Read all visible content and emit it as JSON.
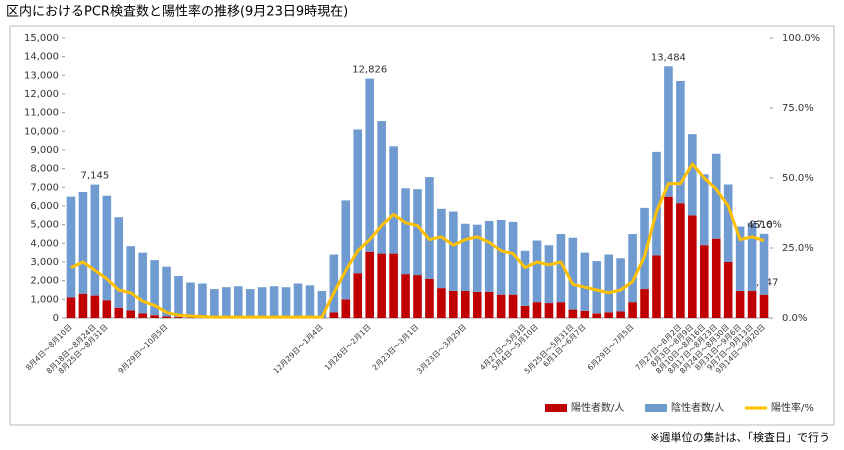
{
  "chart_data": {
    "type": "bar-line",
    "title": "区内におけるPCR検査数と陽性率の推移(9月23日9時現在)",
    "note": "※週単位の集計は、「検査日」で行う",
    "categories": [
      "8月4日～8月10日",
      null,
      "8月18日～8月24日",
      "8月25日～8月31日",
      null,
      null,
      null,
      null,
      "9月29日～10月5日",
      null,
      null,
      null,
      null,
      null,
      null,
      null,
      null,
      null,
      null,
      null,
      null,
      "12月29日～1月4日",
      null,
      null,
      null,
      "1月26日～2月1日",
      null,
      null,
      null,
      "2月23日～3月1日",
      null,
      null,
      null,
      "3月23日～3月29日",
      null,
      null,
      null,
      null,
      "4月27日～5月3日",
      "5月4日～5月10日",
      null,
      null,
      "5月25日～5月31日",
      "6月1日～6月7日",
      null,
      null,
      null,
      "6月29日～7月5日",
      null,
      null,
      null,
      "7月27日～8月2日",
      "8月3日～8月9日",
      "8月10日～8月16日",
      "8月17日～8月23日",
      "8月24日～8月30日",
      "8月31日～9月6日",
      "9月7日～9月13日",
      "9月14日～9月20日"
    ],
    "series": [
      {
        "name": "陽性者数/人",
        "kind": "bar",
        "color": "#c00000",
        "values": [
          1100,
          1300,
          1200,
          950,
          550,
          400,
          250,
          150,
          80,
          50,
          20,
          20,
          10,
          10,
          10,
          10,
          10,
          10,
          10,
          10,
          10,
          10,
          300,
          1000,
          2400,
          3550,
          3450,
          3450,
          2350,
          2300,
          2100,
          1600,
          1450,
          1450,
          1400,
          1400,
          1250,
          1250,
          650,
          850,
          800,
          850,
          450,
          380,
          250,
          300,
          350,
          850,
          1550,
          3350,
          6500,
          6150,
          5500,
          3900,
          4250,
          3000,
          1450,
          1450,
          1247
        ],
        "value_labels": [
          null,
          null,
          null,
          null,
          null,
          null,
          null,
          null,
          null,
          null,
          null,
          null,
          null,
          null,
          null,
          null,
          null,
          null,
          null,
          null,
          null,
          null,
          null,
          null,
          null,
          null,
          null,
          null,
          null,
          null,
          null,
          null,
          null,
          null,
          null,
          null,
          null,
          null,
          null,
          null,
          null,
          null,
          null,
          null,
          null,
          null,
          null,
          null,
          null,
          null,
          null,
          null,
          null,
          null,
          null,
          null,
          null,
          null,
          "1,247"
        ]
      },
      {
        "name": "陰性者数/人",
        "kind": "bar",
        "color": "#6f9bd1",
        "values": [
          5400,
          5450,
          5945,
          5600,
          4850,
          3450,
          3250,
          2950,
          2670,
          2200,
          1880,
          1830,
          1540,
          1640,
          1690,
          1540,
          1640,
          1690,
          1640,
          1840,
          1740,
          1440,
          3100,
          5300,
          7700,
          9276,
          7100,
          5750,
          4600,
          4600,
          5450,
          4250,
          4250,
          3600,
          3600,
          3800,
          4000,
          3900,
          2950,
          3300,
          3100,
          3650,
          3850,
          3120,
          2800,
          3100,
          2850,
          3650,
          4350,
          5550,
          6984,
          6550,
          4350,
          3800,
          4550,
          4150,
          3450,
          3650,
          3263
        ]
      },
      {
        "name": "陽性率/%",
        "kind": "line",
        "axis": "y2",
        "color": "#ffc000",
        "values": [
          18,
          20,
          17,
          14,
          10,
          9,
          6,
          4.5,
          2,
          1,
          0.7,
          0.5,
          0.3,
          0.3,
          0.3,
          0.3,
          0.3,
          0.3,
          0.3,
          0.3,
          0.3,
          0.3,
          9,
          17,
          24,
          28,
          33,
          37,
          34,
          33,
          28,
          29,
          26,
          28,
          29,
          27,
          24,
          23,
          18,
          20,
          19,
          20,
          12,
          11,
          10,
          9,
          10,
          13,
          22,
          38,
          48,
          48,
          55,
          50,
          46,
          40,
          28,
          29,
          27.6
        ],
        "value_labels": [
          null,
          null,
          null,
          null,
          null,
          null,
          null,
          null,
          null,
          null,
          null,
          null,
          null,
          null,
          null,
          null,
          null,
          null,
          null,
          null,
          null,
          null,
          null,
          null,
          null,
          null,
          null,
          null,
          null,
          null,
          null,
          null,
          null,
          null,
          null,
          null,
          null,
          null,
          null,
          null,
          null,
          null,
          null,
          null,
          null,
          null,
          null,
          null,
          null,
          null,
          null,
          null,
          null,
          null,
          null,
          null,
          null,
          null,
          "27.6%"
        ]
      }
    ],
    "annotations": [
      {
        "value": 7145,
        "label": "7,145",
        "color": "#92d050"
      },
      {
        "value": 12826,
        "label": "12,826",
        "color": "#92d050"
      },
      {
        "value": 13484,
        "label": "13,484",
        "color": "#92d050"
      },
      {
        "value": 4510,
        "label": "4510",
        "color": "#92d050"
      }
    ],
    "ylim": [
      0,
      15000
    ],
    "yticks": [
      0,
      {
        "value": 1000,
        "label": "1,000"
      },
      {
        "value": 2000,
        "label": "2,000"
      },
      {
        "value": 3000,
        "label": "3,000"
      },
      {
        "value": 4000,
        "label": "4,000"
      },
      {
        "value": 5000,
        "label": "5,000"
      },
      {
        "value": 6000,
        "label": "6,000"
      },
      {
        "value": 7000,
        "label": "7,000"
      },
      {
        "value": 8000,
        "label": "8,000"
      },
      {
        "value": 9000,
        "label": "9,000"
      },
      {
        "value": 10000,
        "label": "10,000"
      },
      {
        "value": 11000,
        "label": "11,000"
      },
      {
        "value": 12000,
        "label": "12,000"
      },
      {
        "value": 13000,
        "label": "13,000"
      },
      {
        "value": 14000,
        "label": "14,000"
      },
      {
        "value": 15000,
        "label": "15,000"
      }
    ],
    "y2lim": [
      0,
      100
    ],
    "y2ticks": [
      {
        "value": 0,
        "label": "0.0%"
      },
      {
        "value": 25,
        "label": "25.0%"
      },
      {
        "value": 50,
        "label": "50.0%"
      },
      {
        "value": 75,
        "label": "75.0%"
      },
      {
        "value": 100,
        "label": "100.0%"
      }
    ],
    "legend": "bottom-right"
  }
}
